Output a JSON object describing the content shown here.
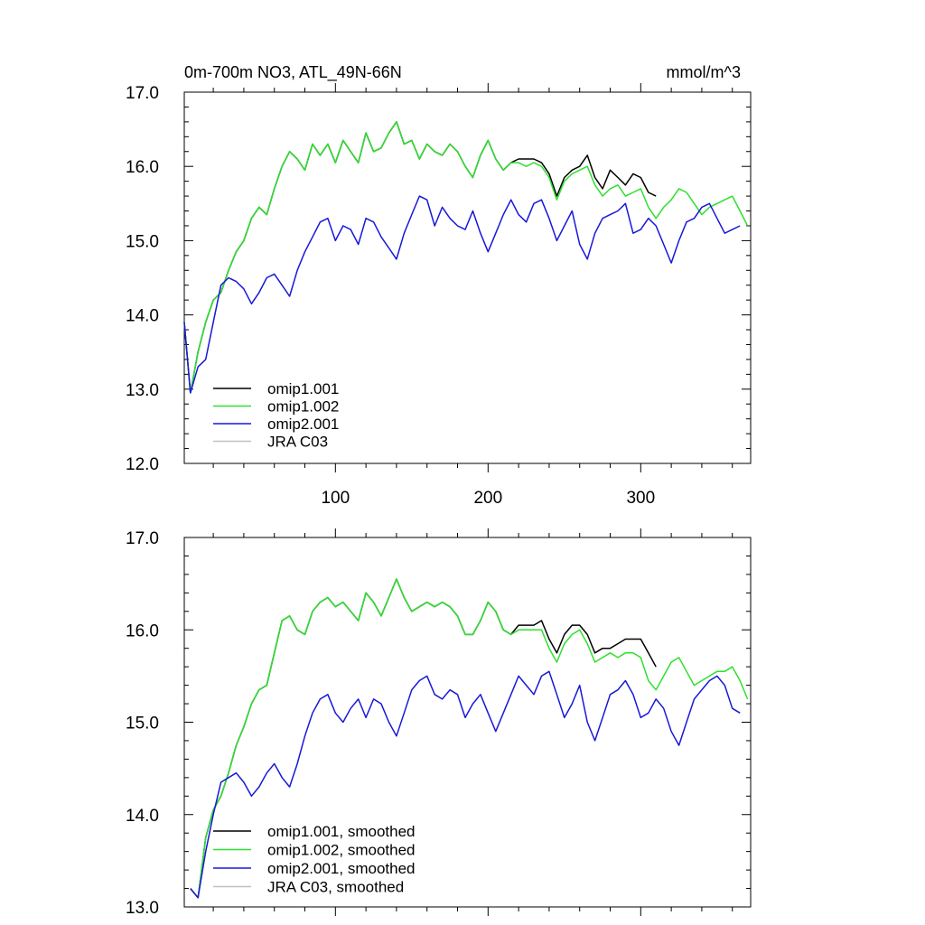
{
  "chart_data": [
    {
      "type": "line",
      "title": "0m-700m NO3, ATL_49N-66N",
      "units": "mmol/m^3",
      "xlabel": "",
      "ylabel": "",
      "xlim": [
        1,
        372
      ],
      "ylim": [
        12.0,
        17.0
      ],
      "yticks": [
        12.0,
        13.0,
        14.0,
        15.0,
        16.0,
        17.0
      ],
      "ytick_labels": [
        "12.0",
        "13.0",
        "14.0",
        "15.0",
        "16.0",
        "17.0"
      ],
      "xticks": [
        100,
        200,
        300
      ],
      "xtick_labels": [
        "100",
        "200",
        "300"
      ],
      "legend_position": "lower-left",
      "series": [
        {
          "name": "omip1.001",
          "color": "#000000",
          "x": [
            1,
            5,
            10,
            15,
            20,
            25,
            30,
            35,
            40,
            45,
            50,
            55,
            60,
            65,
            70,
            75,
            80,
            85,
            90,
            95,
            100,
            105,
            110,
            115,
            120,
            125,
            130,
            135,
            140,
            145,
            150,
            155,
            160,
            165,
            170,
            175,
            180,
            185,
            190,
            195,
            200,
            205,
            210,
            215,
            220,
            225,
            230,
            235,
            240,
            245,
            250,
            255,
            260,
            265,
            270,
            275,
            280,
            285,
            290,
            295,
            300,
            305,
            310
          ],
          "values": [
            13.9,
            12.95,
            13.5,
            13.9,
            14.2,
            14.3,
            14.6,
            14.85,
            15.0,
            15.3,
            15.45,
            15.35,
            15.7,
            16.0,
            16.2,
            16.1,
            15.95,
            16.3,
            16.15,
            16.3,
            16.05,
            16.35,
            16.2,
            16.05,
            16.45,
            16.2,
            16.25,
            16.45,
            16.6,
            16.3,
            16.35,
            16.1,
            16.3,
            16.2,
            16.15,
            16.3,
            16.2,
            16.0,
            15.85,
            16.15,
            16.35,
            16.1,
            15.95,
            16.05,
            16.1,
            16.1,
            16.1,
            16.05,
            15.9,
            15.6,
            15.85,
            15.95,
            16.0,
            16.15,
            15.85,
            15.7,
            15.95,
            15.85,
            15.75,
            15.9,
            15.85,
            15.65,
            15.6
          ]
        },
        {
          "name": "omip1.002",
          "color": "#2ee02e",
          "x": [
            1,
            5,
            10,
            15,
            20,
            25,
            30,
            35,
            40,
            45,
            50,
            55,
            60,
            65,
            70,
            75,
            80,
            85,
            90,
            95,
            100,
            105,
            110,
            115,
            120,
            125,
            130,
            135,
            140,
            145,
            150,
            155,
            160,
            165,
            170,
            175,
            180,
            185,
            190,
            195,
            200,
            205,
            210,
            215,
            220,
            225,
            230,
            235,
            240,
            245,
            250,
            255,
            260,
            265,
            270,
            275,
            280,
            285,
            290,
            295,
            300,
            305,
            310,
            315,
            320,
            325,
            330,
            335,
            340,
            345,
            350,
            355,
            360,
            365,
            370
          ],
          "values": [
            13.9,
            12.95,
            13.5,
            13.9,
            14.2,
            14.3,
            14.6,
            14.85,
            15.0,
            15.3,
            15.45,
            15.35,
            15.7,
            16.0,
            16.2,
            16.1,
            15.95,
            16.3,
            16.15,
            16.3,
            16.05,
            16.35,
            16.2,
            16.05,
            16.45,
            16.2,
            16.25,
            16.45,
            16.6,
            16.3,
            16.35,
            16.1,
            16.3,
            16.2,
            16.15,
            16.3,
            16.2,
            16.0,
            15.85,
            16.15,
            16.35,
            16.1,
            15.95,
            16.05,
            16.05,
            16.0,
            16.05,
            16.0,
            15.85,
            15.55,
            15.8,
            15.9,
            15.95,
            16.0,
            15.75,
            15.6,
            15.7,
            15.75,
            15.6,
            15.65,
            15.7,
            15.45,
            15.3,
            15.45,
            15.55,
            15.7,
            15.65,
            15.5,
            15.35,
            15.45,
            15.5,
            15.55,
            15.6,
            15.4,
            15.2
          ]
        },
        {
          "name": "omip2.001",
          "color": "#1818d8",
          "x": [
            1,
            5,
            10,
            15,
            20,
            25,
            30,
            35,
            40,
            45,
            50,
            55,
            60,
            65,
            70,
            75,
            80,
            85,
            90,
            95,
            100,
            105,
            110,
            115,
            120,
            125,
            130,
            135,
            140,
            145,
            150,
            155,
            160,
            165,
            170,
            175,
            180,
            185,
            190,
            195,
            200,
            205,
            210,
            215,
            220,
            225,
            230,
            235,
            240,
            245,
            250,
            255,
            260,
            265,
            270,
            275,
            280,
            285,
            290,
            295,
            300,
            305,
            310,
            315,
            320,
            325,
            330,
            335,
            340,
            345,
            350,
            355,
            360,
            365
          ],
          "values": [
            13.9,
            12.95,
            13.3,
            13.4,
            13.9,
            14.4,
            14.5,
            14.45,
            14.35,
            14.15,
            14.3,
            14.5,
            14.55,
            14.4,
            14.25,
            14.6,
            14.85,
            15.05,
            15.25,
            15.3,
            15.0,
            15.2,
            15.15,
            14.95,
            15.3,
            15.25,
            15.05,
            14.9,
            14.75,
            15.1,
            15.35,
            15.6,
            15.55,
            15.2,
            15.45,
            15.3,
            15.2,
            15.15,
            15.4,
            15.1,
            14.85,
            15.1,
            15.35,
            15.55,
            15.35,
            15.25,
            15.5,
            15.55,
            15.3,
            15.0,
            15.2,
            15.4,
            14.95,
            14.75,
            15.1,
            15.3,
            15.35,
            15.4,
            15.5,
            15.1,
            15.15,
            15.3,
            15.2,
            14.95,
            14.7,
            15.0,
            15.25,
            15.3,
            15.45,
            15.5,
            15.3,
            15.1,
            15.15,
            15.2
          ]
        },
        {
          "name": "JRA C03",
          "color": "#c0c0c0",
          "x": [],
          "values": []
        }
      ]
    },
    {
      "type": "line",
      "title": "",
      "xlabel": "",
      "ylabel": "",
      "xlim": [
        1,
        372
      ],
      "ylim": [
        13.0,
        17.0
      ],
      "yticks": [
        13.0,
        14.0,
        15.0,
        16.0,
        17.0
      ],
      "ytick_labels": [
        "13.0",
        "14.0",
        "15.0",
        "16.0",
        "17.0"
      ],
      "xticks": [
        100,
        200,
        300
      ],
      "xtick_labels": [],
      "legend_position": "lower-left",
      "series": [
        {
          "name": "omip1.001, smoothed",
          "color": "#000000",
          "x": [
            5,
            10,
            15,
            20,
            25,
            30,
            35,
            40,
            45,
            50,
            55,
            60,
            65,
            70,
            75,
            80,
            85,
            90,
            95,
            100,
            105,
            110,
            115,
            120,
            125,
            130,
            135,
            140,
            145,
            150,
            155,
            160,
            165,
            170,
            175,
            180,
            185,
            190,
            195,
            200,
            205,
            210,
            215,
            220,
            225,
            230,
            235,
            240,
            245,
            250,
            255,
            260,
            265,
            270,
            275,
            280,
            285,
            290,
            295,
            300,
            305,
            310
          ],
          "values": [
            13.2,
            13.1,
            13.75,
            14.05,
            14.2,
            14.45,
            14.75,
            14.95,
            15.2,
            15.35,
            15.4,
            15.75,
            16.1,
            16.15,
            16.0,
            15.95,
            16.2,
            16.3,
            16.35,
            16.25,
            16.3,
            16.2,
            16.1,
            16.4,
            16.3,
            16.15,
            16.35,
            16.55,
            16.35,
            16.2,
            16.25,
            16.3,
            16.25,
            16.3,
            16.25,
            16.15,
            15.95,
            15.95,
            16.1,
            16.3,
            16.2,
            16.0,
            15.95,
            16.05,
            16.05,
            16.05,
            16.1,
            15.9,
            15.75,
            15.95,
            16.05,
            16.05,
            15.95,
            15.75,
            15.8,
            15.8,
            15.85,
            15.9,
            15.9,
            15.9,
            15.75,
            15.6
          ]
        },
        {
          "name": "omip1.002, smoothed",
          "color": "#2ee02e",
          "x": [
            5,
            10,
            15,
            20,
            25,
            30,
            35,
            40,
            45,
            50,
            55,
            60,
            65,
            70,
            75,
            80,
            85,
            90,
            95,
            100,
            105,
            110,
            115,
            120,
            125,
            130,
            135,
            140,
            145,
            150,
            155,
            160,
            165,
            170,
            175,
            180,
            185,
            190,
            195,
            200,
            205,
            210,
            215,
            220,
            225,
            230,
            235,
            240,
            245,
            250,
            255,
            260,
            265,
            270,
            275,
            280,
            285,
            290,
            295,
            300,
            305,
            310,
            315,
            320,
            325,
            330,
            335,
            340,
            345,
            350,
            355,
            360,
            365,
            370
          ],
          "values": [
            13.2,
            13.1,
            13.75,
            14.05,
            14.2,
            14.45,
            14.75,
            14.95,
            15.2,
            15.35,
            15.4,
            15.75,
            16.1,
            16.15,
            16.0,
            15.95,
            16.2,
            16.3,
            16.35,
            16.25,
            16.3,
            16.2,
            16.1,
            16.4,
            16.3,
            16.15,
            16.35,
            16.55,
            16.35,
            16.2,
            16.25,
            16.3,
            16.25,
            16.3,
            16.25,
            16.15,
            15.95,
            15.95,
            16.1,
            16.3,
            16.2,
            16.0,
            15.95,
            16.0,
            16.0,
            16.0,
            16.0,
            15.8,
            15.65,
            15.85,
            15.95,
            16.0,
            15.85,
            15.65,
            15.7,
            15.75,
            15.7,
            15.75,
            15.75,
            15.7,
            15.45,
            15.35,
            15.5,
            15.65,
            15.7,
            15.55,
            15.4,
            15.45,
            15.5,
            15.55,
            15.55,
            15.6,
            15.45,
            15.25
          ]
        },
        {
          "name": "omip2.001, smoothed",
          "color": "#1818d8",
          "x": [
            5,
            10,
            15,
            20,
            25,
            30,
            35,
            40,
            45,
            50,
            55,
            60,
            65,
            70,
            75,
            80,
            85,
            90,
            95,
            100,
            105,
            110,
            115,
            120,
            125,
            130,
            135,
            140,
            145,
            150,
            155,
            160,
            165,
            170,
            175,
            180,
            185,
            190,
            195,
            200,
            205,
            210,
            215,
            220,
            225,
            230,
            235,
            240,
            245,
            250,
            255,
            260,
            265,
            270,
            275,
            280,
            285,
            290,
            295,
            300,
            305,
            310,
            315,
            320,
            325,
            330,
            335,
            340,
            345,
            350,
            355,
            360,
            365
          ],
          "values": [
            13.2,
            13.1,
            13.6,
            14.0,
            14.35,
            14.4,
            14.45,
            14.35,
            14.2,
            14.3,
            14.45,
            14.55,
            14.4,
            14.3,
            14.55,
            14.85,
            15.1,
            15.25,
            15.3,
            15.1,
            15.0,
            15.15,
            15.25,
            15.05,
            15.25,
            15.2,
            15.0,
            14.85,
            15.1,
            15.35,
            15.45,
            15.5,
            15.3,
            15.25,
            15.35,
            15.3,
            15.05,
            15.2,
            15.3,
            15.1,
            14.9,
            15.1,
            15.3,
            15.5,
            15.4,
            15.3,
            15.5,
            15.55,
            15.3,
            15.05,
            15.2,
            15.4,
            15.0,
            14.8,
            15.05,
            15.3,
            15.35,
            15.45,
            15.3,
            15.05,
            15.1,
            15.25,
            15.15,
            14.9,
            14.75,
            15.0,
            15.25,
            15.35,
            15.45,
            15.5,
            15.4,
            15.15,
            15.1
          ]
        },
        {
          "name": "JRA C03, smoothed",
          "color": "#c0c0c0",
          "x": [],
          "values": []
        }
      ]
    }
  ]
}
